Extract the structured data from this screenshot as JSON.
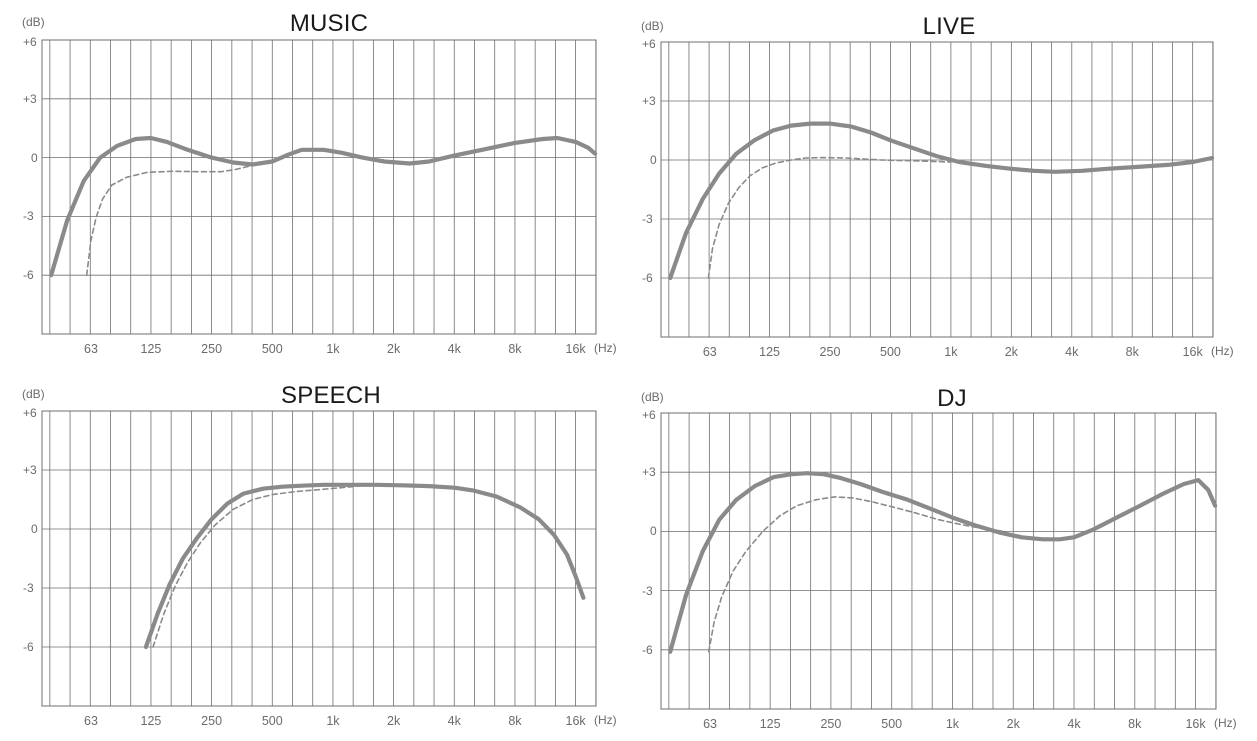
{
  "chart_data": [
    {
      "type": "line",
      "title": "MUSIC",
      "ylabel": "(dB)",
      "xunit": "(Hz)",
      "xscale": "log",
      "xticks": [
        "63",
        "125",
        "250",
        "500",
        "1k",
        "2k",
        "4k",
        "8k",
        "16k"
      ],
      "yticks": [
        "+6",
        "+3",
        "0",
        "-3",
        "-6"
      ],
      "ylim": [
        -9,
        6
      ],
      "grid": true,
      "series": [
        {
          "style": "solid",
          "color": "#8a8a8a",
          "x": [
            40,
            48,
            58,
            70,
            85,
            105,
            125,
            150,
            190,
            250,
            320,
            400,
            500,
            600,
            700,
            900,
            1100,
            1400,
            1800,
            2400,
            3000,
            4000,
            5500,
            8000,
            11000,
            13000,
            16000,
            18500,
            20000
          ],
          "y": [
            -6.0,
            -3.2,
            -1.2,
            0.0,
            0.6,
            0.95,
            1.0,
            0.8,
            0.4,
            0.0,
            -0.25,
            -0.35,
            -0.2,
            0.15,
            0.4,
            0.4,
            0.25,
            0.0,
            -0.2,
            -0.3,
            -0.2,
            0.1,
            0.4,
            0.75,
            0.95,
            1.0,
            0.8,
            0.5,
            0.2
          ]
        },
        {
          "style": "dashed",
          "color": "#8a8a8a",
          "x": [
            60,
            63,
            67,
            72,
            80,
            95,
            120,
            160,
            220,
            280,
            330,
            380,
            420
          ],
          "y": [
            -6.0,
            -4.2,
            -3.0,
            -2.1,
            -1.4,
            -1.0,
            -0.75,
            -0.7,
            -0.72,
            -0.72,
            -0.6,
            -0.45,
            -0.3
          ]
        }
      ]
    },
    {
      "type": "line",
      "title": "LIVE",
      "ylabel": "(dB)",
      "xunit": "(Hz)",
      "xscale": "log",
      "xticks": [
        "63",
        "125",
        "250",
        "500",
        "1k",
        "2k",
        "4k",
        "8k",
        "16k"
      ],
      "yticks": [
        "+6",
        "+3",
        "0",
        "-3",
        "-6"
      ],
      "ylim": [
        -9,
        6
      ],
      "grid": true,
      "series": [
        {
          "style": "solid",
          "color": "#8a8a8a",
          "x": [
            40,
            48,
            58,
            70,
            85,
            105,
            130,
            160,
            200,
            250,
            320,
            400,
            500,
            650,
            850,
            1100,
            1500,
            2000,
            2600,
            3300,
            4500,
            6000,
            8500,
            12000,
            16000,
            20000
          ],
          "y": [
            -6.0,
            -3.7,
            -2.0,
            -0.7,
            0.3,
            1.0,
            1.5,
            1.75,
            1.85,
            1.85,
            1.7,
            1.4,
            1.0,
            0.6,
            0.2,
            -0.1,
            -0.3,
            -0.45,
            -0.55,
            -0.6,
            -0.55,
            -0.45,
            -0.35,
            -0.25,
            -0.1,
            0.1
          ]
        },
        {
          "style": "dashed",
          "color": "#8a8a8a",
          "x": [
            62,
            65,
            70,
            78,
            88,
            100,
            115,
            135,
            160,
            190,
            230,
            300,
            450,
            700,
            1000
          ],
          "y": [
            -6.0,
            -4.5,
            -3.3,
            -2.2,
            -1.4,
            -0.8,
            -0.4,
            -0.15,
            0.0,
            0.1,
            0.12,
            0.1,
            0.0,
            -0.05,
            -0.1
          ]
        }
      ]
    },
    {
      "type": "line",
      "title": "SPEECH",
      "ylabel": "(dB)",
      "xunit": "(Hz)",
      "xscale": "log",
      "xticks": [
        "63",
        "125",
        "250",
        "500",
        "1k",
        "2k",
        "4k",
        "8k",
        "16k"
      ],
      "yticks": [
        "+6",
        "+3",
        "0",
        "-3",
        "-6"
      ],
      "ylim": [
        -9,
        6
      ],
      "grid": true,
      "series": [
        {
          "style": "solid",
          "color": "#8a8a8a",
          "x": [
            118,
            135,
            155,
            180,
            210,
            250,
            300,
            360,
            450,
            560,
            700,
            900,
            1200,
            1600,
            2200,
            3000,
            4000,
            5000,
            6500,
            8500,
            10500,
            12500,
            14500,
            16000,
            17500
          ],
          "y": [
            -6.0,
            -4.3,
            -2.8,
            -1.5,
            -0.5,
            0.5,
            1.3,
            1.8,
            2.05,
            2.15,
            2.2,
            2.25,
            2.25,
            2.25,
            2.22,
            2.18,
            2.1,
            1.95,
            1.65,
            1.1,
            0.5,
            -0.3,
            -1.3,
            -2.4,
            -3.5
          ]
        },
        {
          "style": "dashed",
          "color": "#8a8a8a",
          "x": [
            128,
            145,
            165,
            190,
            220,
            260,
            320,
            400,
            500,
            650,
            850,
            1100,
            1400
          ],
          "y": [
            -6.0,
            -4.3,
            -2.9,
            -1.7,
            -0.7,
            0.2,
            1.0,
            1.5,
            1.75,
            1.9,
            2.0,
            2.1,
            2.2
          ]
        }
      ]
    },
    {
      "type": "line",
      "title": "DJ",
      "ylabel": "(dB)",
      "xunit": "(Hz)",
      "xscale": "log",
      "xticks": [
        "63",
        "125",
        "250",
        "500",
        "1k",
        "2k",
        "4k",
        "8k",
        "16k"
      ],
      "yticks": [
        "+6",
        "+3",
        "0",
        "-3",
        "-6"
      ],
      "ylim": [
        -9,
        6
      ],
      "grid": true,
      "series": [
        {
          "style": "solid",
          "color": "#8a8a8a",
          "x": [
            40,
            48,
            58,
            70,
            85,
            105,
            130,
            160,
            190,
            230,
            280,
            350,
            450,
            600,
            800,
            1000,
            1300,
            1700,
            2200,
            2800,
            3400,
            4000,
            5000,
            6500,
            8500,
            11000,
            14000,
            16500,
            18500,
            20000
          ],
          "y": [
            -6.1,
            -3.2,
            -1.0,
            0.6,
            1.6,
            2.3,
            2.75,
            2.9,
            2.95,
            2.9,
            2.7,
            2.4,
            2.0,
            1.6,
            1.1,
            0.7,
            0.3,
            -0.05,
            -0.3,
            -0.4,
            -0.4,
            -0.3,
            0.1,
            0.7,
            1.3,
            1.9,
            2.4,
            2.6,
            2.1,
            1.3
          ]
        },
        {
          "style": "dashed",
          "color": "#8a8a8a",
          "x": [
            62,
            66,
            72,
            82,
            95,
            115,
            140,
            170,
            210,
            260,
            320,
            400,
            500,
            650,
            850,
            1100,
            1400,
            1800
          ],
          "y": [
            -6.1,
            -4.6,
            -3.3,
            -2.0,
            -1.0,
            0.0,
            0.8,
            1.3,
            1.6,
            1.75,
            1.7,
            1.5,
            1.25,
            0.95,
            0.6,
            0.35,
            0.15,
            0.0
          ]
        }
      ]
    }
  ]
}
